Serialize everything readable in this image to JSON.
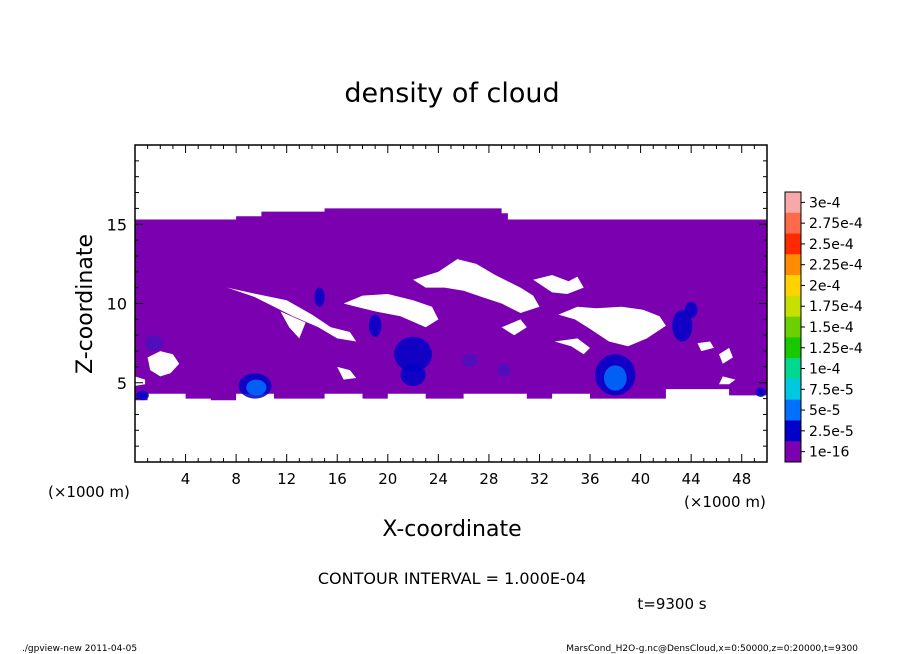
{
  "chart_data": {
    "type": "heatmap",
    "title": "density of cloud",
    "xlabel": "X-coordinate",
    "ylabel": "Z-coordinate",
    "x_unit": "(×1000 m)",
    "xlim": [
      0,
      50
    ],
    "ylim": [
      0,
      20
    ],
    "x_ticks": [
      4,
      8,
      12,
      16,
      20,
      24,
      28,
      32,
      36,
      40,
      44,
      48
    ],
    "y_ticks": [
      5,
      10,
      15
    ],
    "contour_interval": "CONTOUR INTERVAL = 1.000E-04",
    "time": "t=9300 s",
    "colorbar": {
      "labels": [
        "3e-4",
        "2.75e-4",
        "2.5e-4",
        "2.25e-4",
        "2e-4",
        "1.75e-4",
        "1.5e-4",
        "1.25e-4",
        "1e-4",
        "7.5e-5",
        "5e-5",
        "2.5e-5",
        "1e-16"
      ],
      "colors": [
        "#f7a8a8",
        "#ff6a4a",
        "#ff2a00",
        "#ff8c00",
        "#ffd200",
        "#c8e000",
        "#6ad000",
        "#18c800",
        "#00d890",
        "#00c8e0",
        "#0070ff",
        "#0000c8",
        "#7a00b0"
      ]
    },
    "regions": {
      "cloud_top": [
        [
          0,
          15.3
        ],
        [
          8,
          15.3
        ],
        [
          8,
          15.5
        ],
        [
          10,
          15.5
        ],
        [
          10,
          15.8
        ],
        [
          15,
          15.8
        ],
        [
          15,
          16.0
        ],
        [
          29,
          16.0
        ],
        [
          29,
          15.7
        ],
        [
          29.5,
          15.7
        ],
        [
          29.5,
          15.3
        ],
        [
          50,
          15.3
        ]
      ],
      "cloud_base": [
        [
          50,
          4.2
        ],
        [
          47,
          4.2
        ],
        [
          47,
          4.6
        ],
        [
          42,
          4.6
        ],
        [
          42,
          4.0
        ],
        [
          36,
          4.0
        ],
        [
          36,
          4.3
        ],
        [
          33,
          4.3
        ],
        [
          33,
          4.0
        ],
        [
          31,
          4.0
        ],
        [
          31,
          4.3
        ],
        [
          26,
          4.3
        ],
        [
          26,
          4.0
        ],
        [
          23,
          4.0
        ],
        [
          23,
          4.3
        ],
        [
          20,
          4.3
        ],
        [
          20,
          4.0
        ],
        [
          18,
          4.0
        ],
        [
          18,
          4.3
        ],
        [
          15,
          4.3
        ],
        [
          15,
          4.0
        ],
        [
          11,
          4.0
        ],
        [
          11,
          4.3
        ],
        [
          8,
          4.3
        ],
        [
          8,
          3.9
        ],
        [
          6,
          3.9
        ],
        [
          6,
          4.0
        ],
        [
          4,
          4.0
        ],
        [
          4,
          4.3
        ],
        [
          1,
          4.3
        ],
        [
          1,
          3.9
        ],
        [
          0,
          3.9
        ]
      ],
      "gaps": [
        [
          [
            7.3,
            11.0
          ],
          [
            9,
            10.7
          ],
          [
            12,
            10.2
          ],
          [
            14,
            9.3
          ],
          [
            15.5,
            8.5
          ],
          [
            17,
            8.2
          ],
          [
            17.5,
            7.6
          ],
          [
            16,
            7.8
          ],
          [
            14.5,
            8.5
          ],
          [
            12.5,
            9.2
          ],
          [
            11,
            9.8
          ],
          [
            9.5,
            10.4
          ]
        ],
        [
          [
            11.5,
            9.5
          ],
          [
            12.2,
            8.5
          ],
          [
            13,
            7.8
          ],
          [
            13.5,
            8.8
          ]
        ],
        [
          [
            16.5,
            10.0
          ],
          [
            17.5,
            9.8
          ],
          [
            19,
            9.5
          ],
          [
            21,
            9.2
          ],
          [
            23,
            8.5
          ],
          [
            24,
            9.0
          ],
          [
            23.5,
            9.8
          ],
          [
            22,
            10.2
          ],
          [
            20,
            10.6
          ],
          [
            18,
            10.5
          ]
        ],
        [
          [
            22,
            11.5
          ],
          [
            24,
            12.0
          ],
          [
            25.5,
            12.8
          ],
          [
            27,
            12.5
          ],
          [
            28.5,
            11.8
          ],
          [
            30.5,
            11.0
          ],
          [
            31.5,
            10.5
          ],
          [
            32,
            9.8
          ],
          [
            30.5,
            9.4
          ],
          [
            29,
            10.0
          ],
          [
            27.5,
            10.4
          ],
          [
            26,
            10.8
          ],
          [
            24.5,
            11.0
          ],
          [
            23,
            11.0
          ]
        ],
        [
          [
            31.5,
            11.5
          ],
          [
            33,
            11.8
          ],
          [
            34.3,
            11.4
          ],
          [
            35,
            11.7
          ],
          [
            35.5,
            11.0
          ],
          [
            34.2,
            10.6
          ],
          [
            33,
            10.7
          ]
        ],
        [
          [
            29,
            8.5
          ],
          [
            30,
            8.0
          ],
          [
            31,
            8.5
          ],
          [
            30.5,
            9.0
          ]
        ],
        [
          [
            33.5,
            9.3
          ],
          [
            34.8,
            9.0
          ],
          [
            36,
            8.4
          ],
          [
            37.5,
            7.6
          ],
          [
            39,
            7.3
          ],
          [
            40.5,
            7.8
          ],
          [
            42,
            8.6
          ],
          [
            41.5,
            9.2
          ],
          [
            40.2,
            9.6
          ],
          [
            38.5,
            9.8
          ],
          [
            36.5,
            9.7
          ],
          [
            35,
            9.8
          ]
        ],
        [
          [
            33.2,
            7.6
          ],
          [
            34.5,
            7.3
          ],
          [
            35.5,
            6.8
          ],
          [
            36,
            7.2
          ],
          [
            35,
            7.8
          ]
        ],
        [
          [
            2,
            7.0
          ],
          [
            3,
            6.8
          ],
          [
            3.5,
            6.2
          ],
          [
            2.8,
            5.6
          ],
          [
            2,
            5.4
          ],
          [
            1.2,
            5.8
          ],
          [
            1,
            6.6
          ]
        ],
        [
          [
            0,
            5.4
          ],
          [
            0.8,
            5.2
          ],
          [
            0.8,
            4.9
          ],
          [
            0,
            4.8
          ]
        ],
        [
          [
            16,
            6.0
          ],
          [
            17,
            5.8
          ],
          [
            17.5,
            5.3
          ],
          [
            16.5,
            5.2
          ]
        ],
        [
          [
            44.5,
            7.5
          ],
          [
            45.5,
            7.6
          ],
          [
            45.8,
            7.2
          ],
          [
            44.8,
            7.0
          ]
        ],
        [
          [
            46.2,
            6.8
          ],
          [
            47,
            7.2
          ],
          [
            47.3,
            6.6
          ],
          [
            46.5,
            6.2
          ]
        ],
        [
          [
            46.5,
            5.4
          ],
          [
            47.5,
            5.2
          ],
          [
            47,
            4.9
          ],
          [
            46.2,
            4.9
          ]
        ]
      ],
      "dark_blobs": [
        {
          "cx": 9.5,
          "cy": 4.8,
          "rx": 1.3,
          "ry": 0.8,
          "color": "#0000c8"
        },
        {
          "cx": 9.6,
          "cy": 4.7,
          "rx": 0.8,
          "ry": 0.5,
          "color": "#0070ff"
        },
        {
          "cx": 22.0,
          "cy": 6.8,
          "rx": 1.5,
          "ry": 1.1,
          "color": "#0000c8"
        },
        {
          "cx": 22.0,
          "cy": 5.5,
          "rx": 1.0,
          "ry": 0.7,
          "color": "#0000c8"
        },
        {
          "cx": 38.0,
          "cy": 5.5,
          "rx": 1.6,
          "ry": 1.3,
          "color": "#0000c8"
        },
        {
          "cx": 38.0,
          "cy": 5.3,
          "rx": 0.9,
          "ry": 0.8,
          "color": "#0070ff"
        },
        {
          "cx": 14.6,
          "cy": 10.4,
          "rx": 0.4,
          "ry": 0.6,
          "color": "#0000c8"
        },
        {
          "cx": 19.0,
          "cy": 8.6,
          "rx": 0.5,
          "ry": 0.7,
          "color": "#0000c8"
        },
        {
          "cx": 43.3,
          "cy": 8.6,
          "rx": 0.8,
          "ry": 1.0,
          "color": "#0000c8"
        },
        {
          "cx": 44.0,
          "cy": 9.6,
          "rx": 0.5,
          "ry": 0.5,
          "color": "#0000c8"
        },
        {
          "cx": 0.6,
          "cy": 4.2,
          "rx": 0.5,
          "ry": 0.3,
          "color": "#0000c8"
        },
        {
          "cx": 49.5,
          "cy": 4.4,
          "rx": 0.4,
          "ry": 0.3,
          "color": "#0000c8"
        },
        {
          "cx": 1.5,
          "cy": 7.5,
          "rx": 0.7,
          "ry": 0.5,
          "color": "#4a10c0"
        },
        {
          "cx": 29.2,
          "cy": 5.8,
          "rx": 0.5,
          "ry": 0.4,
          "color": "#4a10c0"
        },
        {
          "cx": 26.5,
          "cy": 6.4,
          "rx": 0.6,
          "ry": 0.4,
          "color": "#4a10c0"
        }
      ]
    }
  },
  "footer": {
    "left": "./gpview-new   2011-04-05",
    "right": "MarsCond_H2O-g.nc@DensCloud,x=0:50000,z=0:20000,t=9300"
  }
}
